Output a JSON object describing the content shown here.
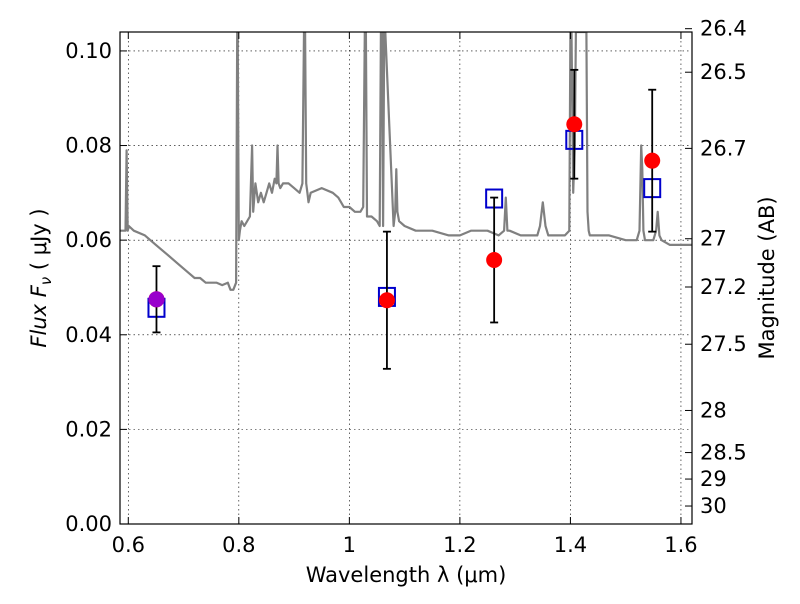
{
  "chart_data": {
    "type": "scatter",
    "title": "",
    "xlabel": "Wavelength  λ (μm)",
    "ylabel": "Flux  F",
    "ylabel_subscript": "ν",
    "ylabel_unit": " ( μJy )",
    "ylabel_right": "Magnitude (AB)",
    "xlim": [
      0.585,
      1.62
    ],
    "ylim": [
      0.0,
      0.104
    ],
    "grid": true,
    "x_ticks": [
      0.6,
      0.8,
      1.0,
      1.2,
      1.4,
      1.6
    ],
    "x_tick_labels": [
      "0.6",
      "0.8",
      "1",
      "1.2",
      "1.4",
      "1.6"
    ],
    "y_ticks": [
      0.0,
      0.02,
      0.04,
      0.06,
      0.08,
      0.1
    ],
    "y_tick_labels": [
      "0.00",
      "0.02",
      "0.04",
      "0.06",
      "0.08",
      "0.10"
    ],
    "right_ticks": [
      {
        "label": "26.4",
        "flux": 0.1047
      },
      {
        "label": "26.5",
        "flux": 0.0955
      },
      {
        "label": "26.7",
        "flux": 0.0794
      },
      {
        "label": "27",
        "flux": 0.0603
      },
      {
        "label": "27.2",
        "flux": 0.0501
      },
      {
        "label": "27.5",
        "flux": 0.038
      },
      {
        "label": "28",
        "flux": 0.024
      },
      {
        "label": "28.5",
        "flux": 0.0151
      },
      {
        "label": "29",
        "flux": 0.0095
      },
      {
        "label": "30",
        "flux": 0.0038
      }
    ],
    "model_spectrum": {
      "color": "#808080",
      "x": [
        0.585,
        0.595,
        0.597,
        0.599,
        0.601,
        0.61,
        0.63,
        0.65,
        0.67,
        0.69,
        0.71,
        0.72,
        0.73,
        0.74,
        0.75,
        0.76,
        0.77,
        0.78,
        0.785,
        0.79,
        0.795,
        0.797,
        0.798,
        0.8,
        0.802,
        0.805,
        0.81,
        0.82,
        0.824,
        0.826,
        0.83,
        0.835,
        0.84,
        0.845,
        0.85,
        0.855,
        0.86,
        0.865,
        0.868,
        0.87,
        0.872,
        0.875,
        0.88,
        0.89,
        0.9,
        0.91,
        0.915,
        0.918,
        0.92,
        0.922,
        0.924,
        0.926,
        0.93,
        0.95,
        0.97,
        0.98,
        0.985,
        0.99,
        1.0,
        1.01,
        1.02,
        1.025,
        1.028,
        1.03,
        1.032,
        1.035,
        1.04,
        1.05,
        1.055,
        1.057,
        1.059,
        1.061,
        1.063,
        1.065,
        1.08,
        1.083,
        1.085,
        1.087,
        1.09,
        1.1,
        1.12,
        1.15,
        1.18,
        1.2,
        1.22,
        1.25,
        1.27,
        1.28,
        1.283,
        1.286,
        1.29,
        1.31,
        1.33,
        1.34,
        1.345,
        1.35,
        1.355,
        1.36,
        1.38,
        1.39,
        1.398,
        1.4,
        1.402,
        1.405,
        1.408,
        1.41,
        1.42,
        1.425,
        1.427,
        1.429,
        1.431,
        1.433,
        1.435,
        1.44,
        1.47,
        1.5,
        1.52,
        1.525,
        1.528,
        1.53,
        1.532,
        1.535,
        1.54,
        1.55,
        1.555,
        1.558,
        1.561,
        1.565,
        1.58,
        1.6,
        1.62
      ],
      "y": [
        0.062,
        0.062,
        0.079,
        0.062,
        0.063,
        0.062,
        0.061,
        0.059,
        0.057,
        0.055,
        0.053,
        0.052,
        0.052,
        0.051,
        0.051,
        0.051,
        0.0505,
        0.051,
        0.0495,
        0.0495,
        0.051,
        0.104,
        0.104,
        0.06,
        0.062,
        0.064,
        0.063,
        0.065,
        0.08,
        0.066,
        0.072,
        0.068,
        0.07,
        0.068,
        0.07,
        0.072,
        0.07,
        0.073,
        0.072,
        0.08,
        0.072,
        0.071,
        0.072,
        0.072,
        0.071,
        0.07,
        0.072,
        0.104,
        0.104,
        0.072,
        0.07,
        0.068,
        0.07,
        0.071,
        0.07,
        0.069,
        0.068,
        0.067,
        0.067,
        0.066,
        0.066,
        0.067,
        0.104,
        0.104,
        0.065,
        0.065,
        0.065,
        0.064,
        0.063,
        0.104,
        0.104,
        0.063,
        0.104,
        0.104,
        0.063,
        0.066,
        0.075,
        0.066,
        0.064,
        0.063,
        0.062,
        0.062,
        0.061,
        0.061,
        0.062,
        0.062,
        0.061,
        0.062,
        0.069,
        0.062,
        0.062,
        0.061,
        0.061,
        0.061,
        0.063,
        0.068,
        0.063,
        0.061,
        0.061,
        0.061,
        0.062,
        0.104,
        0.104,
        0.07,
        0.08,
        0.104,
        0.104,
        0.104,
        0.104,
        0.104,
        0.066,
        0.062,
        0.061,
        0.061,
        0.061,
        0.06,
        0.06,
        0.062,
        0.08,
        0.075,
        0.062,
        0.06,
        0.06,
        0.06,
        0.062,
        0.066,
        0.061,
        0.06,
        0.059,
        0.059,
        0.059
      ]
    },
    "observed": {
      "color": "#ff0000",
      "points": [
        {
          "x": 0.651,
          "y": 0.0475,
          "err": 0.007
        },
        {
          "x": 1.068,
          "y": 0.0473,
          "err": 0.0145
        },
        {
          "x": 1.262,
          "y": 0.0558,
          "err": 0.0132
        },
        {
          "x": 1.407,
          "y": 0.0845,
          "err": 0.0115
        },
        {
          "x": 1.548,
          "y": 0.0768,
          "err": 0.015
        }
      ]
    },
    "overlap_point": {
      "x": 0.651,
      "y": 0.0475,
      "color": "#9900cc"
    },
    "model_points": {
      "color": "#0000cc",
      "points": [
        {
          "x": 0.651,
          "y": 0.0457
        },
        {
          "x": 1.068,
          "y": 0.048
        },
        {
          "x": 1.262,
          "y": 0.0688
        },
        {
          "x": 1.407,
          "y": 0.0812
        },
        {
          "x": 1.548,
          "y": 0.071
        }
      ]
    }
  }
}
